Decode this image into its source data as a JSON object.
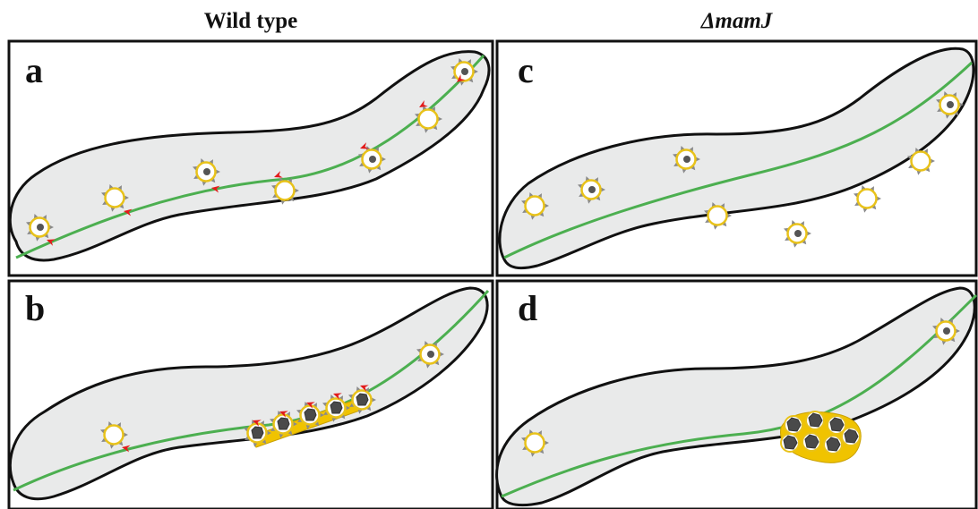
{
  "headers": {
    "left": "Wild type",
    "right": "ΔmamJ"
  },
  "panels": [
    {
      "letter": "a"
    },
    {
      "letter": "b"
    },
    {
      "letter": "c"
    },
    {
      "letter": "d"
    }
  ],
  "colors": {
    "cell_fill": "#e9eaea",
    "outline": "#111111",
    "filament": "#4caf50",
    "vesicle_ring": "#e8c21a",
    "magnetite": "#555555",
    "anchor_arrow": "#e21b1b",
    "chain_fill": "#f0c300"
  }
}
